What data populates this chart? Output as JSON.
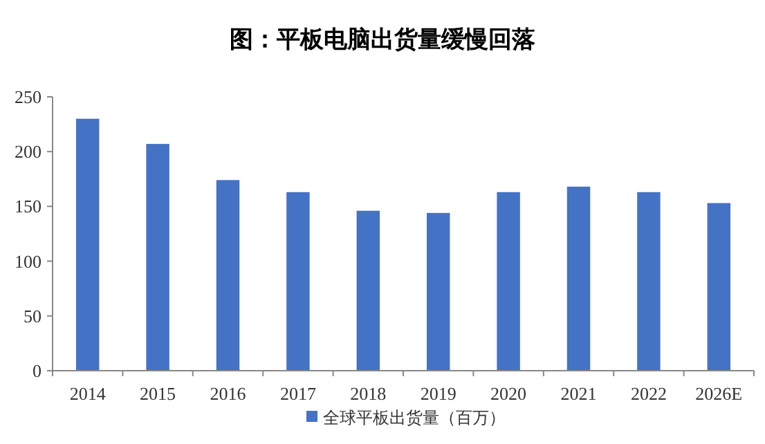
{
  "chart_data": {
    "type": "bar",
    "title": "图：平板电脑出货量缓慢回落",
    "categories": [
      "2014",
      "2015",
      "2016",
      "2017",
      "2018",
      "2019",
      "2020",
      "2021",
      "2022",
      "2026E"
    ],
    "series": [
      {
        "name": "全球平板出货量（百万）",
        "color": "#4472c4",
        "values": [
          230,
          207,
          174,
          163,
          146,
          144,
          163,
          168,
          163,
          153
        ]
      }
    ],
    "ylim": [
      0,
      250
    ],
    "yticks": [
      0,
      50,
      100,
      150,
      200,
      250
    ],
    "grid": false,
    "legend": "bottom"
  }
}
